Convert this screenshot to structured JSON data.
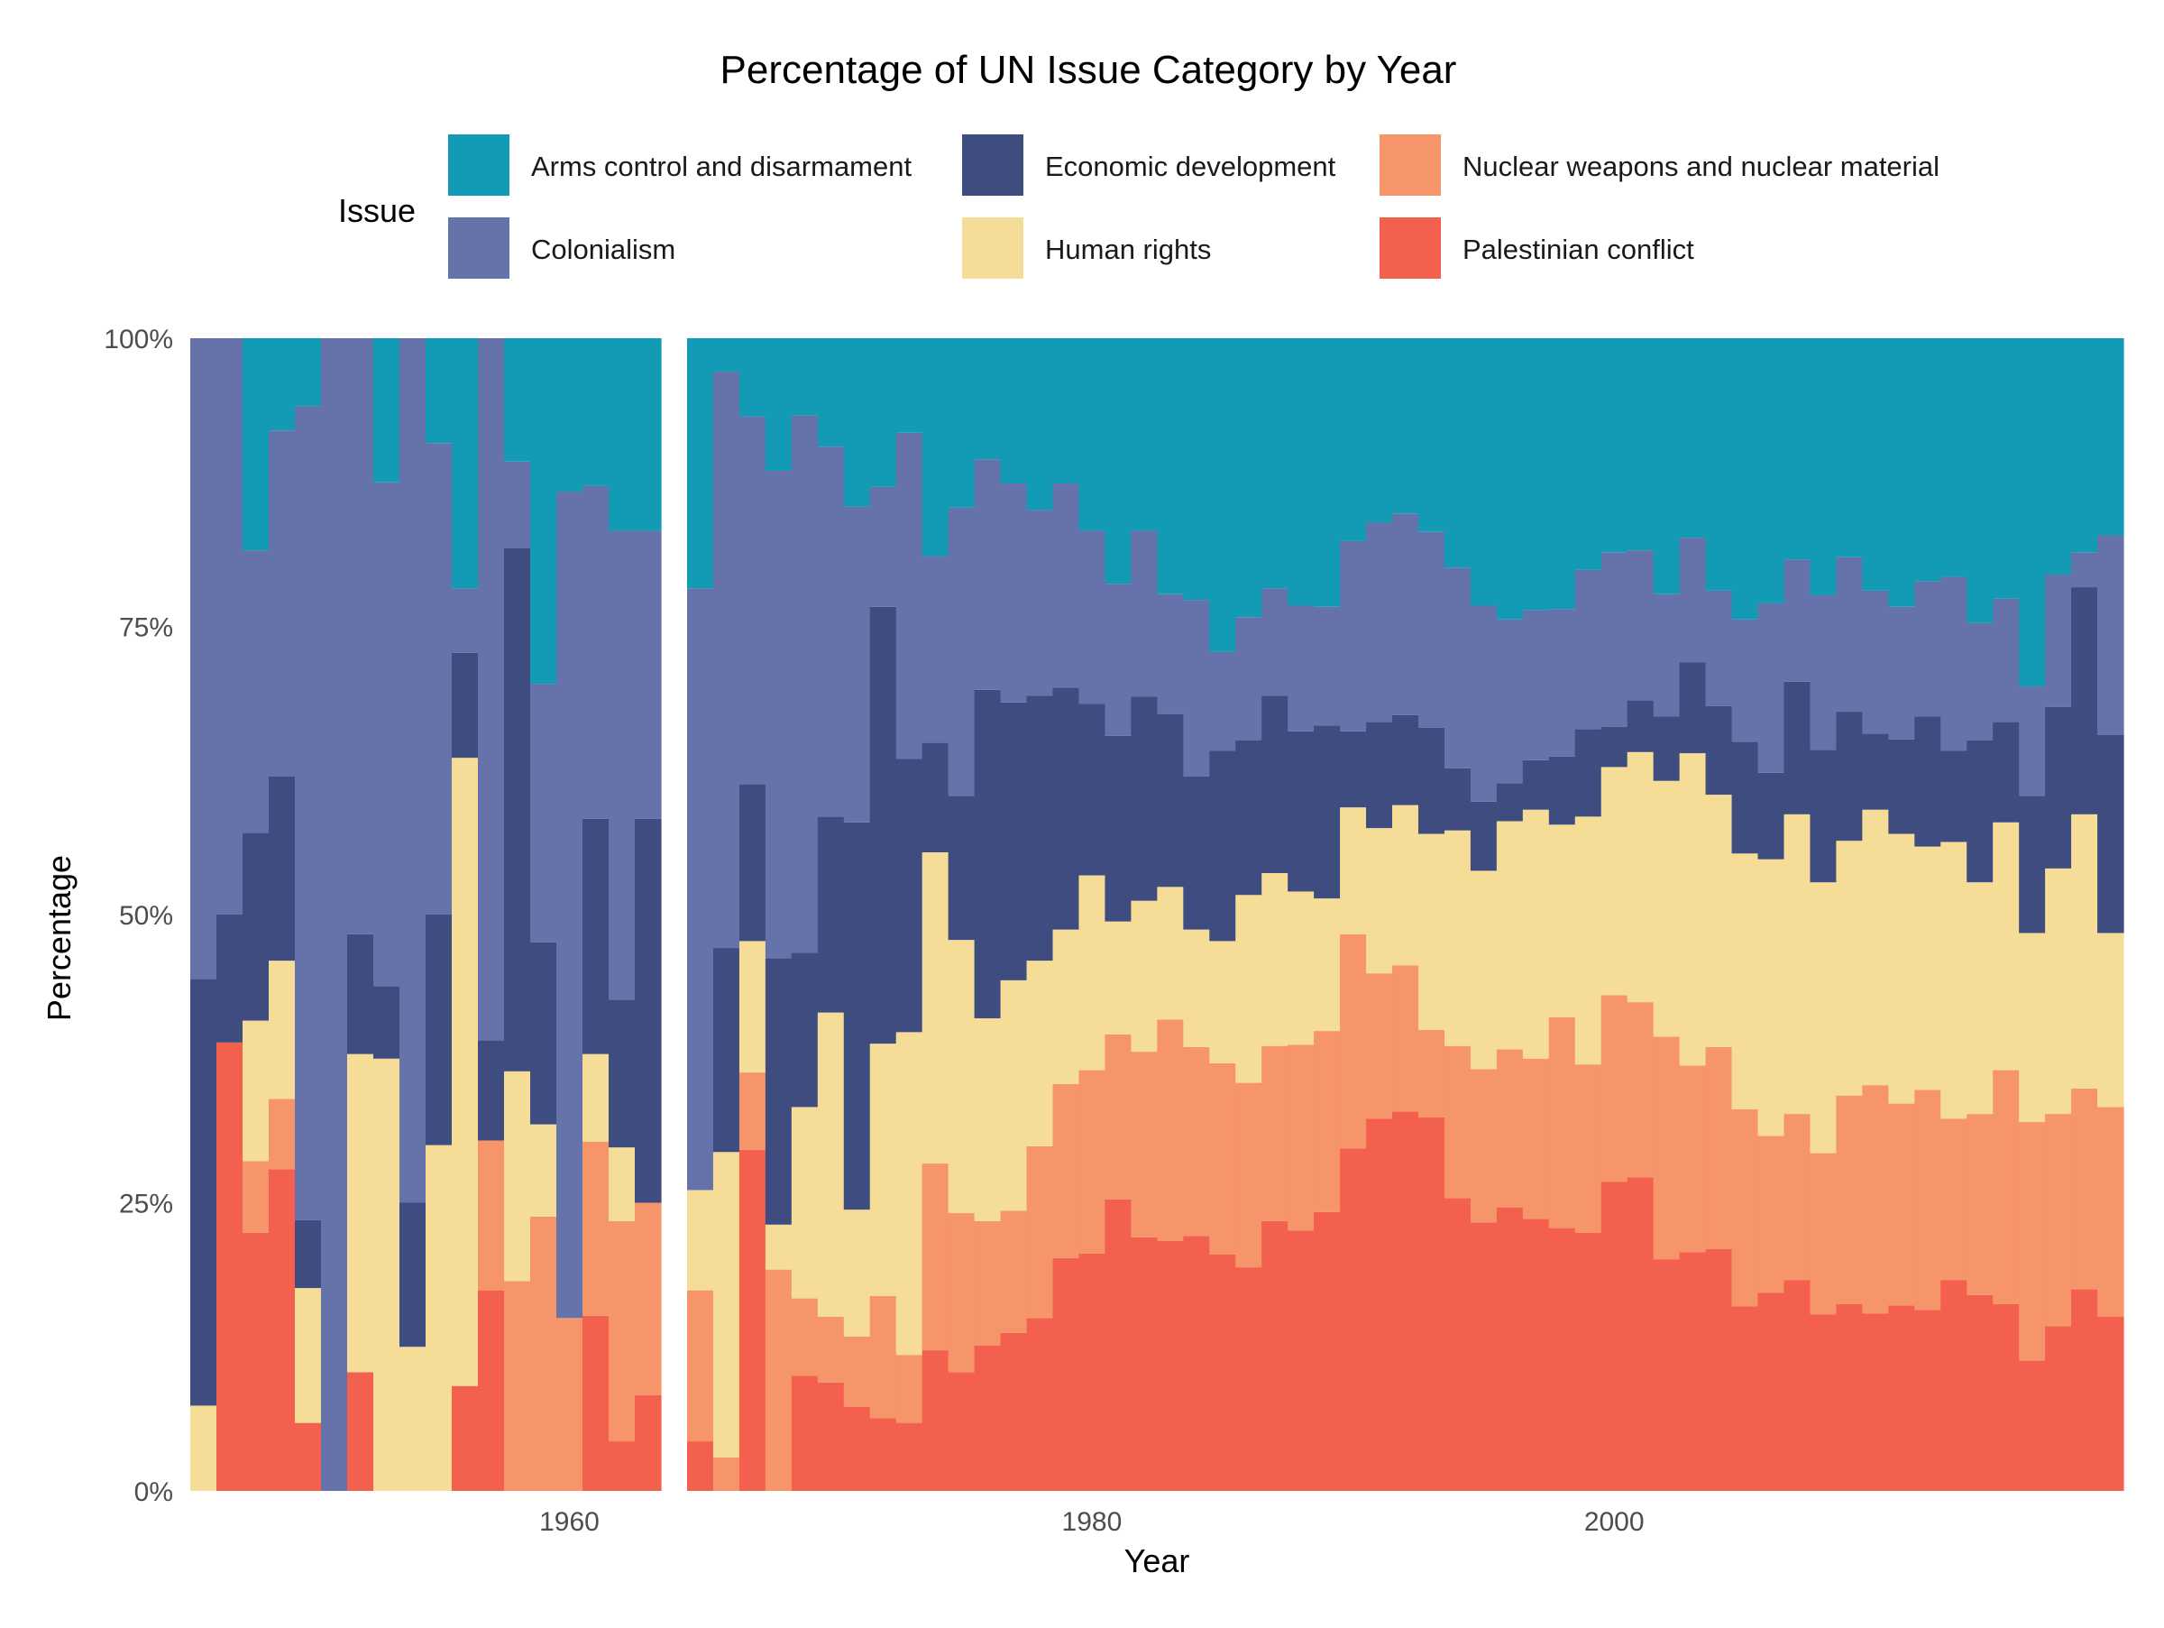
{
  "chart_data": {
    "type": "bar",
    "stacked": true,
    "title": "Percentage of UN Issue Category by Year",
    "xlabel": "Year",
    "ylabel": "Percentage",
    "ylim": [
      0,
      100
    ],
    "y_ticks": [
      "0%",
      "25%",
      "50%",
      "75%",
      "100%"
    ],
    "x_ticks": [
      "1960",
      "1980",
      "2000"
    ],
    "legend": {
      "title": "Issue",
      "position": "top",
      "entries": [
        "Arms control and disarmament",
        "Economic development",
        "Nuclear weapons and nuclear material",
        "Colonialism",
        "Human rights",
        "Palestinian conflict"
      ]
    },
    "series_order_bottom_to_top": [
      "Palestinian conflict",
      "Nuclear weapons and nuclear material",
      "Human rights",
      "Economic development",
      "Colonialism",
      "Arms control and disarmament"
    ],
    "colors": {
      "Arms control and disarmament": "#139bb5",
      "Economic development": "#3e4c80",
      "Nuclear weapons and nuclear material": "#f69569",
      "Colonialism": "#6673aa",
      "Human rights": "#f5dd97",
      "Palestinian conflict": "#f4604e"
    },
    "panels": [
      {
        "years": [
          1946,
          1947,
          1948,
          1949,
          1950,
          1951,
          1952,
          1953,
          1954,
          1955,
          1956,
          1957,
          1958,
          1959,
          1960,
          1961,
          1962,
          1963
        ],
        "cumulative_tops": {
          "Palestinian conflict": [
            0,
            38.9,
            22.4,
            27.9,
            5.9,
            0,
            10.3,
            0,
            0,
            0,
            9.1,
            17.4,
            0,
            0,
            0,
            15.2,
            4.3,
            8.3
          ],
          "Nuclear weapons and nuclear material": [
            0,
            38.9,
            28.6,
            34.0,
            5.9,
            0,
            10.3,
            0,
            0,
            0,
            9.1,
            30.4,
            18.2,
            23.8,
            15.0,
            30.3,
            23.4,
            25.0
          ],
          "Human rights": [
            7.4,
            38.9,
            40.8,
            46.0,
            17.6,
            0,
            37.9,
            37.5,
            12.5,
            30.0,
            63.6,
            30.4,
            36.4,
            31.8,
            15.0,
            37.9,
            29.8,
            25.0
          ],
          "Economic development": [
            44.4,
            50.0,
            57.1,
            62.0,
            23.5,
            0,
            48.3,
            43.8,
            25.0,
            50.0,
            72.7,
            39.1,
            81.8,
            47.6,
            15.0,
            58.3,
            42.6,
            58.3
          ],
          "Colonialism": [
            100,
            100,
            81.6,
            92.0,
            94.1,
            100,
            100,
            87.5,
            100,
            90.9,
            78.3,
            100,
            89.3,
            70.0,
            86.7,
            87.2,
            83.3,
            83.3
          ],
          "Arms control and disarmament": [
            100,
            100,
            100,
            100,
            100,
            100,
            100,
            100,
            100,
            100,
            100,
            100,
            100,
            100,
            100,
            100,
            100,
            100
          ]
        }
      },
      {
        "years": [
          1965,
          1966,
          1967,
          1968,
          1969,
          1970,
          1971,
          1972,
          1973,
          1974,
          1975,
          1976,
          1977,
          1978,
          1979,
          1980,
          1981,
          1982,
          1983,
          1984,
          1985,
          1986,
          1987,
          1988,
          1989,
          1990,
          1991,
          1992,
          1993,
          1994,
          1995,
          1996,
          1997,
          1998,
          1999,
          2000,
          2001,
          2002,
          2003,
          2004,
          2005,
          2006,
          2007,
          2008,
          2009,
          2010,
          2011,
          2012,
          2013,
          2014,
          2015,
          2016,
          2017,
          2018,
          2019
        ],
        "cumulative_tops": {
          "Palestinian conflict": [
            4.3,
            0,
            29.6,
            0,
            10.0,
            9.4,
            7.3,
            6.3,
            5.9,
            12.2,
            10.3,
            12.6,
            13.7,
            15.0,
            20.2,
            20.6,
            25.3,
            22.0,
            21.7,
            22.1,
            20.5,
            19.4,
            23.4,
            22.6,
            24.2,
            29.7,
            32.3,
            32.9,
            32.4,
            25.4,
            23.3,
            24.6,
            23.6,
            22.8,
            22.4,
            26.8,
            27.2,
            20.1,
            20.7,
            21.0,
            16.0,
            17.2,
            18.3,
            15.3,
            16.2,
            15.4,
            16.1,
            15.7,
            18.3,
            17.0,
            16.2,
            11.3,
            14.3,
            17.5,
            15.1
          ],
          "Nuclear weapons and nuclear material": [
            17.4,
            2.9,
            36.3,
            19.2,
            16.7,
            15.1,
            13.4,
            16.9,
            11.8,
            28.4,
            24.1,
            23.4,
            24.3,
            29.9,
            35.3,
            36.5,
            39.6,
            38.1,
            40.9,
            38.5,
            37.1,
            35.4,
            38.6,
            38.7,
            39.9,
            48.3,
            44.9,
            45.6,
            40.0,
            38.6,
            36.6,
            38.3,
            37.5,
            41.1,
            37.0,
            43.0,
            42.4,
            39.4,
            36.9,
            38.5,
            33.1,
            30.8,
            32.7,
            29.3,
            34.3,
            35.2,
            33.6,
            34.8,
            32.3,
            32.7,
            36.5,
            32.0,
            32.7,
            34.9,
            33.3
          ],
          "Human rights": [
            26.1,
            29.4,
            47.7,
            23.1,
            33.3,
            41.5,
            24.4,
            38.8,
            39.8,
            55.4,
            47.8,
            41.0,
            44.3,
            46.0,
            48.7,
            53.4,
            49.4,
            51.2,
            52.4,
            48.7,
            47.7,
            51.7,
            53.6,
            52.0,
            51.4,
            59.3,
            57.5,
            59.5,
            57.0,
            57.3,
            53.8,
            58.1,
            59.1,
            57.8,
            58.5,
            62.8,
            64.1,
            61.6,
            64.0,
            60.4,
            55.3,
            54.8,
            58.7,
            52.8,
            56.4,
            59.1,
            57.0,
            55.9,
            56.3,
            52.8,
            58.0,
            48.4,
            54.0,
            58.7,
            48.4
          ],
          "Economic development": [
            26.1,
            47.1,
            61.3,
            46.2,
            46.7,
            58.5,
            58.0,
            76.7,
            63.5,
            64.9,
            60.3,
            69.5,
            68.4,
            69.0,
            69.7,
            68.3,
            65.5,
            68.9,
            67.4,
            62.0,
            64.2,
            65.1,
            69.0,
            65.9,
            66.4,
            65.9,
            66.7,
            67.3,
            66.2,
            62.7,
            59.8,
            61.4,
            63.4,
            63.7,
            66.1,
            66.3,
            68.6,
            67.2,
            71.9,
            68.1,
            65.0,
            62.3,
            70.2,
            64.3,
            67.6,
            65.7,
            65.2,
            67.2,
            64.2,
            65.1,
            66.7,
            60.3,
            68.0,
            78.4,
            65.6
          ],
          "Colonialism": [
            78.3,
            97.1,
            93.2,
            88.5,
            93.3,
            90.6,
            85.4,
            87.1,
            91.8,
            81.1,
            85.3,
            89.5,
            87.4,
            85.1,
            87.4,
            83.3,
            78.7,
            83.3,
            77.8,
            77.3,
            72.8,
            75.8,
            78.3,
            76.8,
            76.7,
            82.4,
            84.0,
            84.8,
            83.2,
            80.1,
            76.8,
            75.6,
            76.4,
            76.5,
            79.9,
            81.4,
            81.6,
            77.8,
            82.7,
            78.1,
            75.6,
            77.0,
            80.8,
            77.7,
            81.0,
            78.1,
            76.7,
            78.9,
            79.3,
            75.3,
            77.4,
            69.8,
            79.5,
            81.4,
            82.9
          ],
          "Arms control and disarmament": [
            100,
            100,
            100,
            100,
            100,
            100,
            100,
            100,
            100,
            100,
            100,
            100,
            100,
            100,
            100,
            100,
            100,
            100,
            100,
            100,
            100,
            100,
            100,
            100,
            100,
            100,
            100,
            100,
            100,
            100,
            100,
            100,
            100,
            100,
            100,
            100,
            100,
            100,
            100,
            100,
            100,
            100,
            100,
            100,
            100,
            100,
            100,
            100,
            100,
            100,
            100,
            100,
            100,
            100,
            100
          ]
        }
      }
    ]
  }
}
